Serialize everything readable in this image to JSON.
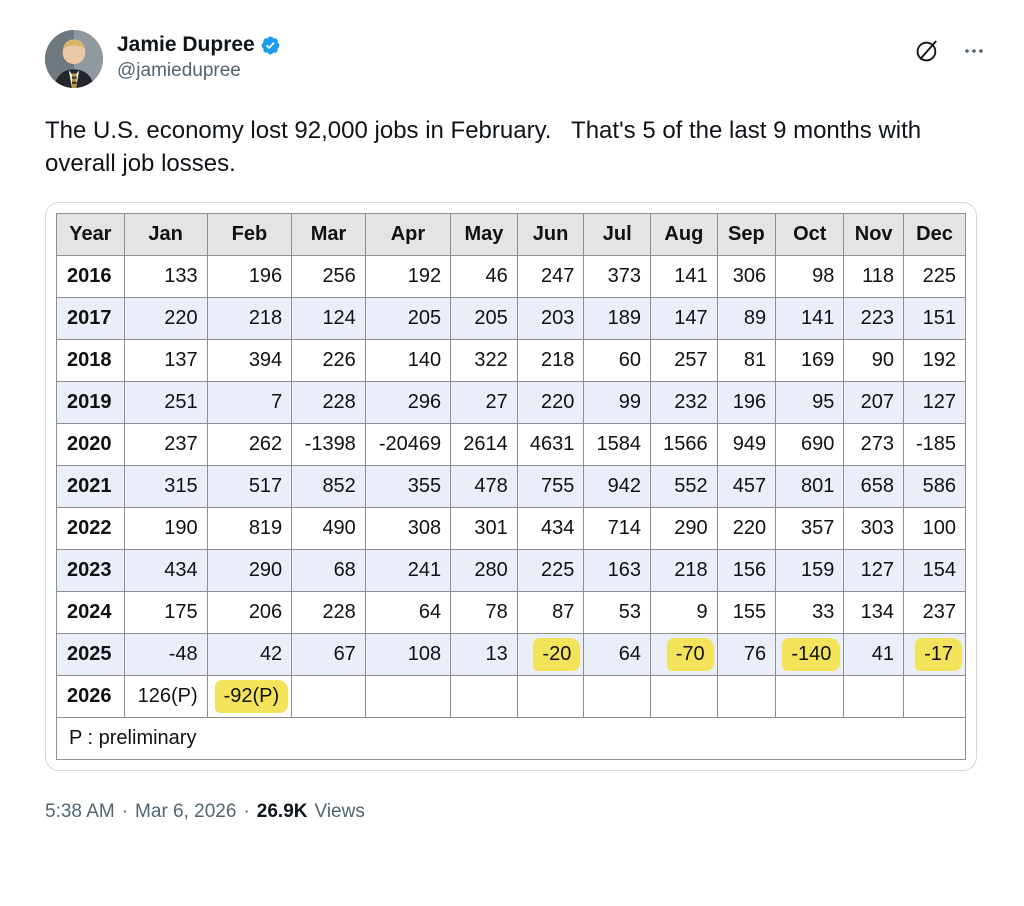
{
  "tweet": {
    "author": {
      "name": "Jamie Dupree",
      "handle": "@jamiedupree"
    },
    "body": "The U.S. economy lost 92,000 jobs in February.   That's 5 of the last 9 months with overall job losses.",
    "meta": {
      "time": "5:38 AM",
      "date": "Mar 6, 2026",
      "separator": "·",
      "views_count": "26.9K",
      "views_label": "Views"
    },
    "icons": {
      "verified_badge": "blue-verified-seal-with-check",
      "grok": "slashed-circle-grok-icon",
      "more": "three-dots-more-icon"
    },
    "colors": {
      "accent_blue": "#1d9bf0",
      "muted_gray": "#536471"
    }
  },
  "chart_data": {
    "type": "table",
    "title": "Monthly U.S. job change by year (thousands)",
    "columns": [
      "Year",
      "Jan",
      "Feb",
      "Mar",
      "Apr",
      "May",
      "Jun",
      "Jul",
      "Aug",
      "Sep",
      "Oct",
      "Nov",
      "Dec"
    ],
    "rows": [
      {
        "year": "2016",
        "values": [
          "133",
          "196",
          "256",
          "192",
          "46",
          "247",
          "373",
          "141",
          "306",
          "98",
          "118",
          "225"
        ]
      },
      {
        "year": "2017",
        "values": [
          "220",
          "218",
          "124",
          "205",
          "205",
          "203",
          "189",
          "147",
          "89",
          "141",
          "223",
          "151"
        ]
      },
      {
        "year": "2018",
        "values": [
          "137",
          "394",
          "226",
          "140",
          "322",
          "218",
          "60",
          "257",
          "81",
          "169",
          "90",
          "192"
        ]
      },
      {
        "year": "2019",
        "values": [
          "251",
          "7",
          "228",
          "296",
          "27",
          "220",
          "99",
          "232",
          "196",
          "95",
          "207",
          "127"
        ]
      },
      {
        "year": "2020",
        "values": [
          "237",
          "262",
          "-1398",
          "-20469",
          "2614",
          "4631",
          "1584",
          "1566",
          "949",
          "690",
          "273",
          "-185"
        ]
      },
      {
        "year": "2021",
        "values": [
          "315",
          "517",
          "852",
          "355",
          "478",
          "755",
          "942",
          "552",
          "457",
          "801",
          "658",
          "586"
        ]
      },
      {
        "year": "2022",
        "values": [
          "190",
          "819",
          "490",
          "308",
          "301",
          "434",
          "714",
          "290",
          "220",
          "357",
          "303",
          "100"
        ]
      },
      {
        "year": "2023",
        "values": [
          "434",
          "290",
          "68",
          "241",
          "280",
          "225",
          "163",
          "218",
          "156",
          "159",
          "127",
          "154"
        ]
      },
      {
        "year": "2024",
        "values": [
          "175",
          "206",
          "228",
          "64",
          "78",
          "87",
          "53",
          "9",
          "155",
          "33",
          "134",
          "237"
        ]
      },
      {
        "year": "2025",
        "values": [
          "-48",
          "42",
          "67",
          "108",
          "13",
          "-20",
          "64",
          "-70",
          "76",
          "-140",
          "41",
          "-17"
        ]
      },
      {
        "year": "2026",
        "values": [
          "126(P)",
          "-92(P)",
          "",
          "",
          "",
          "",
          "",
          "",
          "",
          "",
          "",
          ""
        ]
      }
    ],
    "highlights": [
      {
        "year": "2025",
        "month": "Jun"
      },
      {
        "year": "2025",
        "month": "Aug"
      },
      {
        "year": "2025",
        "month": "Oct"
      },
      {
        "year": "2025",
        "month": "Dec"
      },
      {
        "year": "2026",
        "month": "Feb"
      }
    ],
    "striped_years": [
      "2017",
      "2019",
      "2021",
      "2023",
      "2025"
    ],
    "footnote": "P : preliminary",
    "colors": {
      "header_bg": "#e4e4e4",
      "stripe_bg": "#e9eef9",
      "highlight": "#f3e35a",
      "border": "#8f8f8f"
    }
  }
}
